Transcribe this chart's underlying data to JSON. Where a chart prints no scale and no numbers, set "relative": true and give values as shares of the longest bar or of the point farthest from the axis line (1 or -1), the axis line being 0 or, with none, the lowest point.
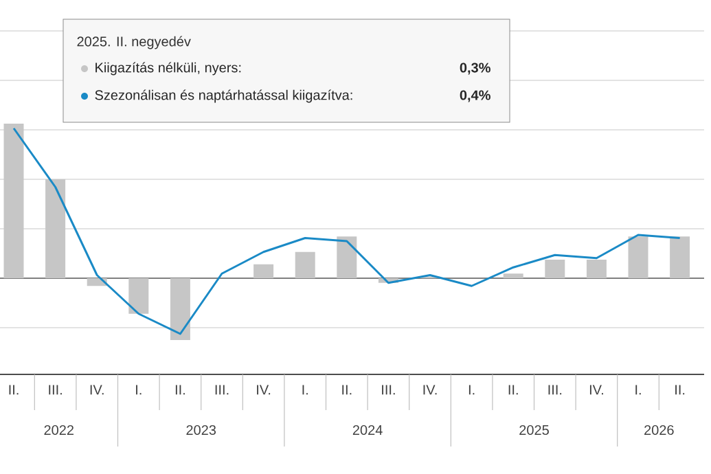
{
  "chart_data": {
    "type": "bar",
    "relative": true,
    "grid": "y",
    "legend": "top",
    "legend_title": "2025. II. negyedév",
    "categories": [
      "II.",
      "III.",
      "IV.",
      "I.",
      "II.",
      "III.",
      "IV.",
      "I.",
      "II.",
      "III.",
      "IV.",
      "I.",
      "II.",
      "III.",
      "IV.",
      "I.",
      "II."
    ],
    "series": [
      {
        "name": "Kiigazítás nélküli, nyers:",
        "color": "#c6c6c6",
        "values": [
          1.0,
          0.64,
          -0.05,
          -0.23,
          -0.4,
          0,
          0.09,
          0.17,
          0.27,
          -0.03,
          0.01,
          0,
          0.03,
          0.12,
          0.12,
          0.27,
          0.27
        ]
      },
      {
        "type": "line",
        "name": "Szezonálisan és naptárhatással kiigazítva:",
        "color": "#1a8ac6",
        "values": [
          0.97,
          0.59,
          0.02,
          -0.23,
          -0.36,
          0.03,
          0.17,
          0.26,
          0.24,
          -0.03,
          0.02,
          -0.05,
          0.07,
          0.15,
          0.13,
          0.28,
          0.26
        ]
      }
    ],
    "annotations": [
      "0,3%",
      "0,4%",
      "2022",
      "2023",
      "2024",
      "2025",
      "2026"
    ]
  }
}
